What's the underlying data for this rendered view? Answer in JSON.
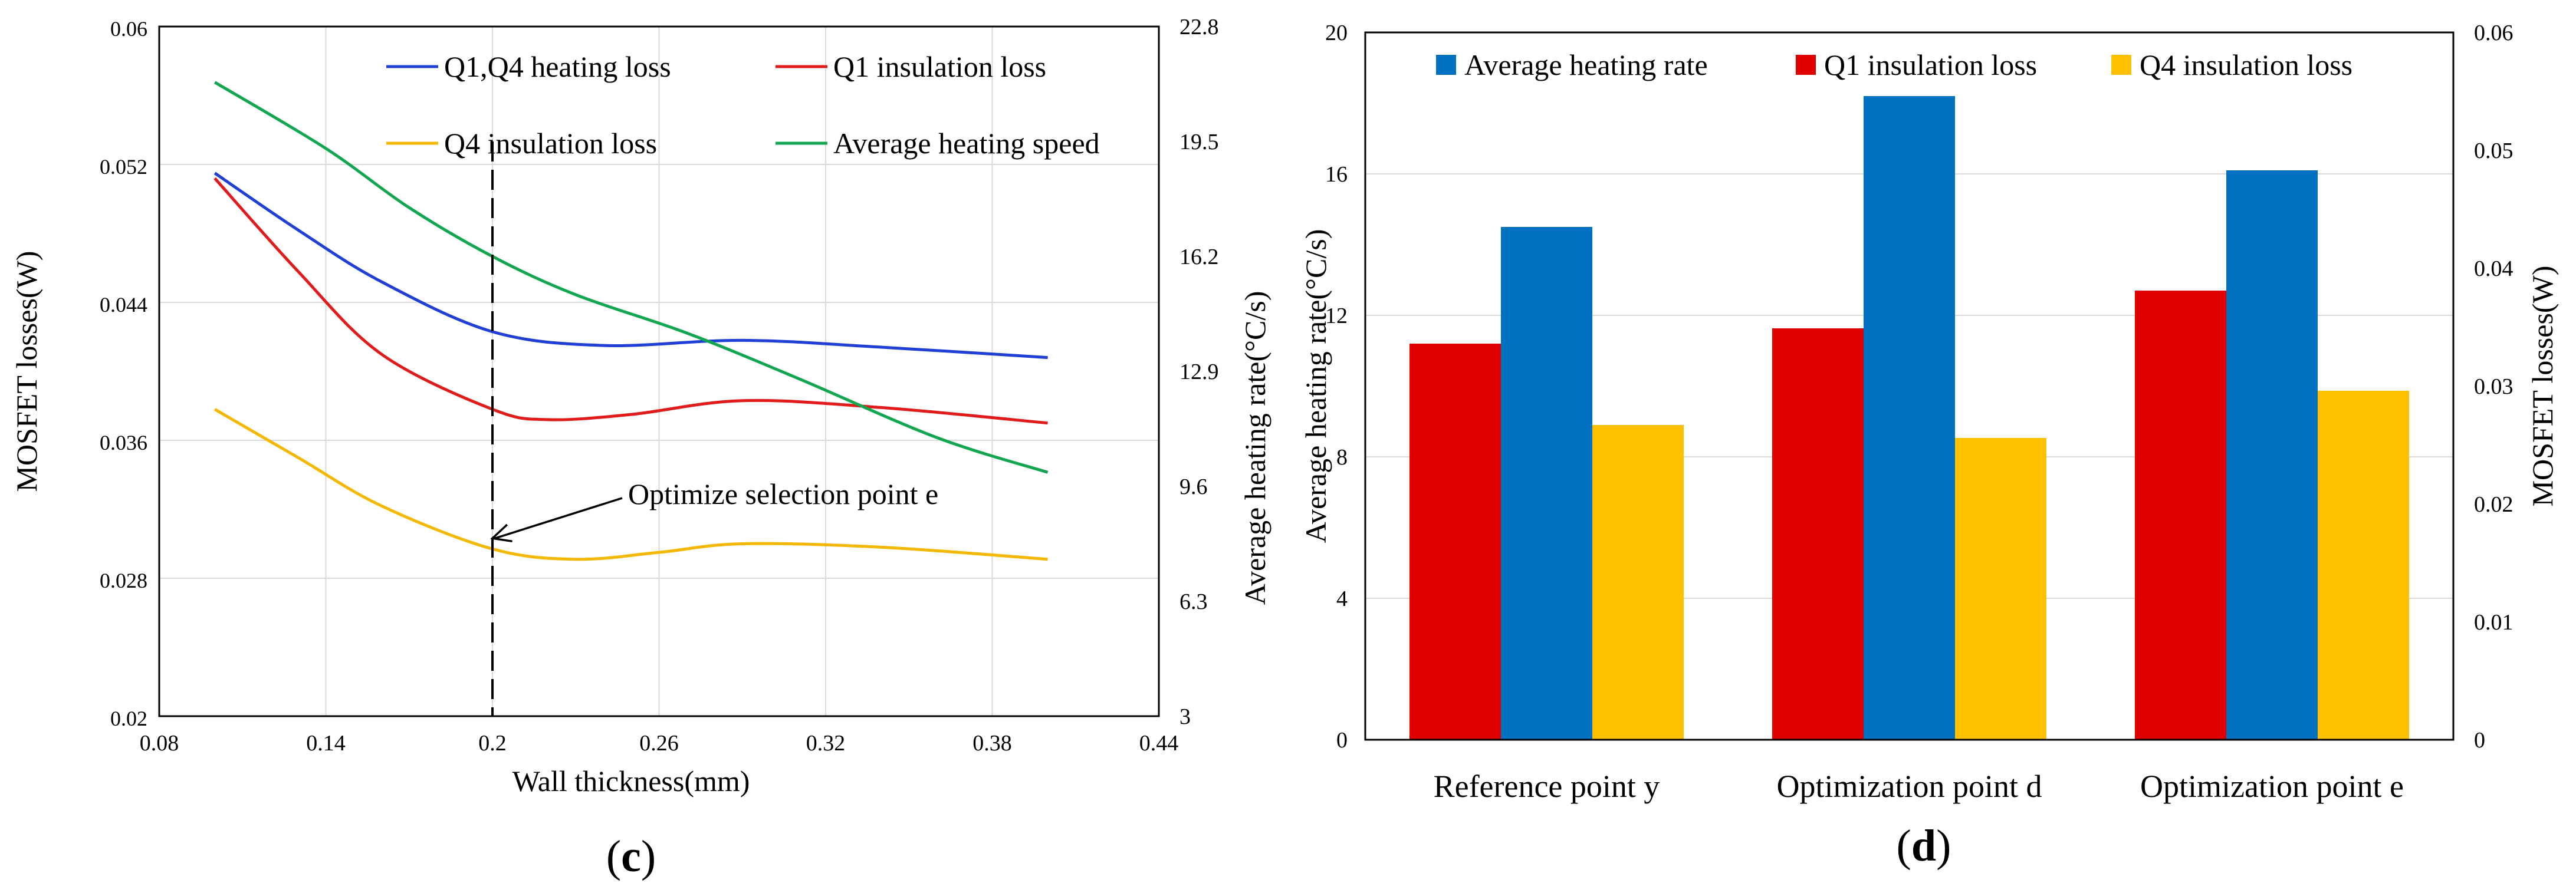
{
  "chart_data": [
    {
      "type": "line",
      "panel_label": "(c)",
      "panel_letter": "c",
      "xlabel": "Wall thickness(mm)",
      "ylabel_left": "MOSFET losses(W)",
      "ylabel_right": "Average heating rate(°C/s)",
      "xlim": [
        0.08,
        0.44
      ],
      "ylim_left": [
        0.02,
        0.06
      ],
      "ylim_right": [
        3,
        22.8
      ],
      "x_ticks": [
        "0.08",
        "0.14",
        "0.2",
        "0.26",
        "0.32",
        "0.38",
        "0.44"
      ],
      "y_left_ticks": [
        "0.02",
        "0.028",
        "0.036",
        "0.044",
        "0.052",
        "0.06"
      ],
      "y_right_ticks": [
        "3",
        "6.3",
        "9.6",
        "12.9",
        "16.2",
        "19.5",
        "22.8"
      ],
      "grid": true,
      "legend": "top",
      "series": [
        {
          "name": "Q1,Q4 heating loss",
          "axis": "left",
          "color": "#1f3fd6",
          "x": [
            0.1,
            0.13,
            0.16,
            0.2,
            0.24,
            0.29,
            0.34,
            0.4
          ],
          "y": [
            0.0515,
            0.0482,
            0.0452,
            0.0423,
            0.0415,
            0.0418,
            0.0414,
            0.0408
          ]
        },
        {
          "name": "Q1 insulation loss",
          "axis": "left",
          "color": "#e11a1a",
          "x": [
            0.1,
            0.13,
            0.16,
            0.2,
            0.22,
            0.25,
            0.29,
            0.34,
            0.4
          ],
          "y": [
            0.0512,
            0.0458,
            0.041,
            0.0378,
            0.0372,
            0.0375,
            0.0383,
            0.0379,
            0.037
          ]
        },
        {
          "name": "Q4 insulation loss",
          "axis": "left",
          "color": "#f5b800",
          "x": [
            0.1,
            0.13,
            0.16,
            0.2,
            0.23,
            0.26,
            0.29,
            0.34,
            0.4
          ],
          "y": [
            0.0378,
            0.035,
            0.0322,
            0.0297,
            0.0291,
            0.0295,
            0.03,
            0.0298,
            0.0291
          ]
        },
        {
          "name": "Average heating speed",
          "axis": "right",
          "color": "#12a650",
          "x": [
            0.1,
            0.14,
            0.17,
            0.2,
            0.23,
            0.27,
            0.31,
            0.36,
            0.4
          ],
          "y": [
            21.2,
            19.3,
            17.6,
            16.2,
            15.1,
            14.0,
            12.7,
            11.0,
            10.0
          ]
        }
      ],
      "annotations": [
        {
          "text": "Optimize selection point e",
          "x": 0.2,
          "y": 0.0297
        }
      ],
      "vline_x": 0.2
    },
    {
      "type": "bar",
      "panel_label": "(d)",
      "panel_letter": "d",
      "ylabel_left": "Average  heating rate(°C/s)",
      "ylabel_right": "MOSFET losses(W)",
      "ylim_left": [
        0,
        20
      ],
      "ylim_right": [
        0,
        0.06
      ],
      "y_left_ticks": [
        "0",
        "4",
        "8",
        "12",
        "16",
        "20"
      ],
      "y_right_ticks": [
        "0",
        "0.01",
        "0.02",
        "0.03",
        "0.04",
        "0.05",
        "0.06"
      ],
      "categories": [
        "Reference point y",
        "Optimization point d",
        "Optimization point e"
      ],
      "legend": "top",
      "series": [
        {
          "name": "Q1 insulation loss",
          "axis": "right",
          "color": "#e00000",
          "values": [
            0.0336,
            0.0349,
            0.0381
          ]
        },
        {
          "name": "Average heating rate",
          "axis": "left",
          "color": "#0070c0",
          "values": [
            14.5,
            18.2,
            16.1
          ]
        },
        {
          "name": "Q4 insulation loss",
          "axis": "right",
          "color": "#ffc000",
          "values": [
            0.0267,
            0.0256,
            0.0296
          ]
        }
      ],
      "legend_order": [
        "Average heating rate",
        "Q1 insulation loss",
        "Q4 insulation loss"
      ]
    }
  ]
}
